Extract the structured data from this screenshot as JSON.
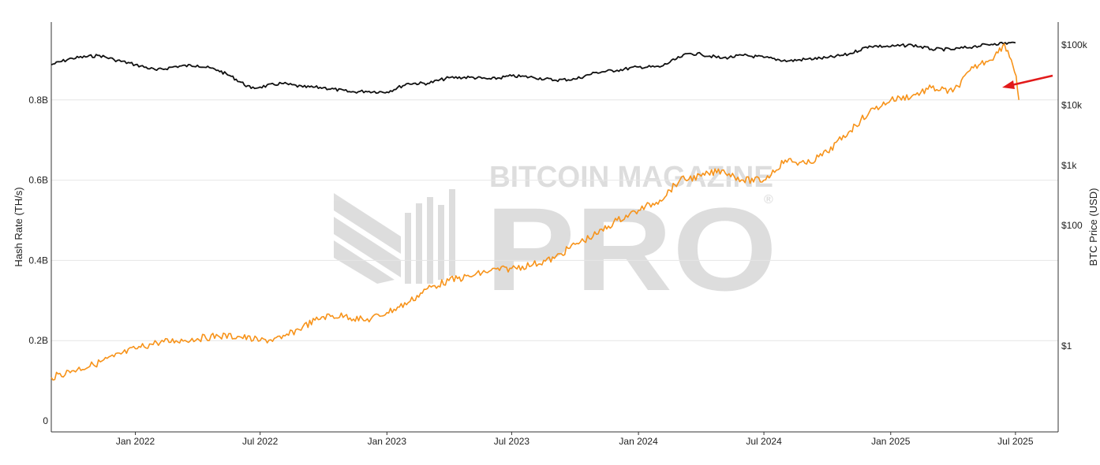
{
  "chart_data": {
    "type": "line",
    "watermark": {
      "line1": "BITCOIN MAGAZINE",
      "line2": "PRO",
      "mark": "®"
    },
    "x_range": [
      "2021-09-01",
      "2025-09-01"
    ],
    "x_ticks": [
      {
        "date": "2022-01-01",
        "label": "Jan 2022"
      },
      {
        "date": "2022-07-01",
        "label": "Jul 2022"
      },
      {
        "date": "2023-01-01",
        "label": "Jan 2023"
      },
      {
        "date": "2023-07-01",
        "label": "Jul 2023"
      },
      {
        "date": "2024-01-01",
        "label": "Jan 2024"
      },
      {
        "date": "2024-07-01",
        "label": "Jul 2024"
      },
      {
        "date": "2025-01-01",
        "label": "Jan 2025"
      },
      {
        "date": "2025-07-01",
        "label": "Jul 2025"
      }
    ],
    "y_left": {
      "label": "Hash Rate (TH/s)",
      "range": [
        0,
        1.0
      ],
      "ticks": [
        {
          "value": 0,
          "label": "0"
        },
        {
          "value": 0.2,
          "label": "0.2B"
        },
        {
          "value": 0.4,
          "label": "0.4B"
        },
        {
          "value": 0.6,
          "label": "0.6B"
        },
        {
          "value": 0.8,
          "label": "0.8B"
        }
      ]
    },
    "y_right": {
      "label": "BTC Price (USD)",
      "scale": "log",
      "range": [
        0.02,
        150000
      ],
      "ticks": [
        {
          "value": 1,
          "label": "$1"
        },
        {
          "value": 100,
          "label": "$100"
        },
        {
          "value": 1000,
          "label": "$1k"
        },
        {
          "value": 10000,
          "label": "$10k"
        },
        {
          "value": 100000,
          "label": "$100k"
        }
      ]
    },
    "series": [
      {
        "axis": "right",
        "color": "#111111",
        "points": [
          [
            "2021-09-01",
            47000
          ],
          [
            "2021-10-01",
            60000
          ],
          [
            "2021-11-10",
            67000
          ],
          [
            "2021-12-01",
            57000
          ],
          [
            "2022-01-01",
            47000
          ],
          [
            "2022-02-01",
            38000
          ],
          [
            "2022-03-01",
            44000
          ],
          [
            "2022-04-01",
            46000
          ],
          [
            "2022-05-01",
            38000
          ],
          [
            "2022-05-20",
            30000
          ],
          [
            "2022-06-18",
            19000
          ],
          [
            "2022-07-01",
            20000
          ],
          [
            "2022-08-01",
            23000
          ],
          [
            "2022-09-01",
            20000
          ],
          [
            "2022-10-01",
            19500
          ],
          [
            "2022-11-10",
            16500
          ],
          [
            "2022-12-01",
            17000
          ],
          [
            "2023-01-01",
            16500
          ],
          [
            "2023-02-01",
            23000
          ],
          [
            "2023-03-01",
            23000
          ],
          [
            "2023-04-01",
            28500
          ],
          [
            "2023-05-01",
            29000
          ],
          [
            "2023-06-01",
            27000
          ],
          [
            "2023-07-01",
            30500
          ],
          [
            "2023-08-01",
            29000
          ],
          [
            "2023-09-01",
            26000
          ],
          [
            "2023-10-01",
            27000
          ],
          [
            "2023-11-01",
            35000
          ],
          [
            "2023-12-01",
            38000
          ],
          [
            "2024-01-01",
            43000
          ],
          [
            "2024-02-01",
            43000
          ],
          [
            "2024-03-01",
            62000
          ],
          [
            "2024-03-14",
            72000
          ],
          [
            "2024-04-01",
            70000
          ],
          [
            "2024-05-01",
            60000
          ],
          [
            "2024-06-01",
            67000
          ],
          [
            "2024-07-01",
            62000
          ],
          [
            "2024-08-05",
            54000
          ],
          [
            "2024-09-01",
            58000
          ],
          [
            "2024-10-01",
            61000
          ],
          [
            "2024-11-01",
            70000
          ],
          [
            "2024-12-01",
            96000
          ],
          [
            "2025-01-01",
            94000
          ],
          [
            "2025-02-01",
            100000
          ],
          [
            "2025-03-01",
            85000
          ],
          [
            "2025-04-01",
            84000
          ],
          [
            "2025-05-01",
            94000
          ],
          [
            "2025-06-01",
            105000
          ],
          [
            "2025-07-01",
            108000
          ]
        ]
      },
      {
        "axis": "left",
        "color": "#f7931a",
        "points": [
          [
            "2021-09-01",
            0.108
          ],
          [
            "2021-10-01",
            0.125
          ],
          [
            "2021-11-01",
            0.14
          ],
          [
            "2021-12-01",
            0.16
          ],
          [
            "2022-01-01",
            0.18
          ],
          [
            "2022-02-01",
            0.195
          ],
          [
            "2022-03-01",
            0.2
          ],
          [
            "2022-04-01",
            0.205
          ],
          [
            "2022-05-01",
            0.212
          ],
          [
            "2022-06-01",
            0.21
          ],
          [
            "2022-07-01",
            0.2
          ],
          [
            "2022-08-01",
            0.205
          ],
          [
            "2022-09-01",
            0.235
          ],
          [
            "2022-10-01",
            0.26
          ],
          [
            "2022-11-01",
            0.262
          ],
          [
            "2022-12-01",
            0.25
          ],
          [
            "2023-01-01",
            0.27
          ],
          [
            "2023-02-01",
            0.295
          ],
          [
            "2023-03-01",
            0.33
          ],
          [
            "2023-04-01",
            0.35
          ],
          [
            "2023-05-01",
            0.36
          ],
          [
            "2023-06-01",
            0.375
          ],
          [
            "2023-07-01",
            0.38
          ],
          [
            "2023-08-01",
            0.39
          ],
          [
            "2023-09-01",
            0.405
          ],
          [
            "2023-10-01",
            0.44
          ],
          [
            "2023-11-01",
            0.465
          ],
          [
            "2023-12-01",
            0.5
          ],
          [
            "2024-01-01",
            0.525
          ],
          [
            "2024-02-01",
            0.55
          ],
          [
            "2024-03-01",
            0.6
          ],
          [
            "2024-04-01",
            0.61
          ],
          [
            "2024-05-01",
            0.625
          ],
          [
            "2024-06-01",
            0.6
          ],
          [
            "2024-07-01",
            0.6
          ],
          [
            "2024-08-01",
            0.65
          ],
          [
            "2024-09-01",
            0.64
          ],
          [
            "2024-10-01",
            0.67
          ],
          [
            "2024-11-01",
            0.72
          ],
          [
            "2024-12-01",
            0.77
          ],
          [
            "2025-01-01",
            0.8
          ],
          [
            "2025-02-01",
            0.81
          ],
          [
            "2025-03-01",
            0.83
          ],
          [
            "2025-04-01",
            0.82
          ],
          [
            "2025-05-01",
            0.88
          ],
          [
            "2025-06-01",
            0.91
          ],
          [
            "2025-06-15",
            0.94
          ],
          [
            "2025-06-25",
            0.9
          ],
          [
            "2025-07-02",
            0.86
          ],
          [
            "2025-07-06",
            0.8
          ]
        ]
      }
    ],
    "annotation": {
      "type": "arrow",
      "color": "#e21a1a"
    }
  }
}
